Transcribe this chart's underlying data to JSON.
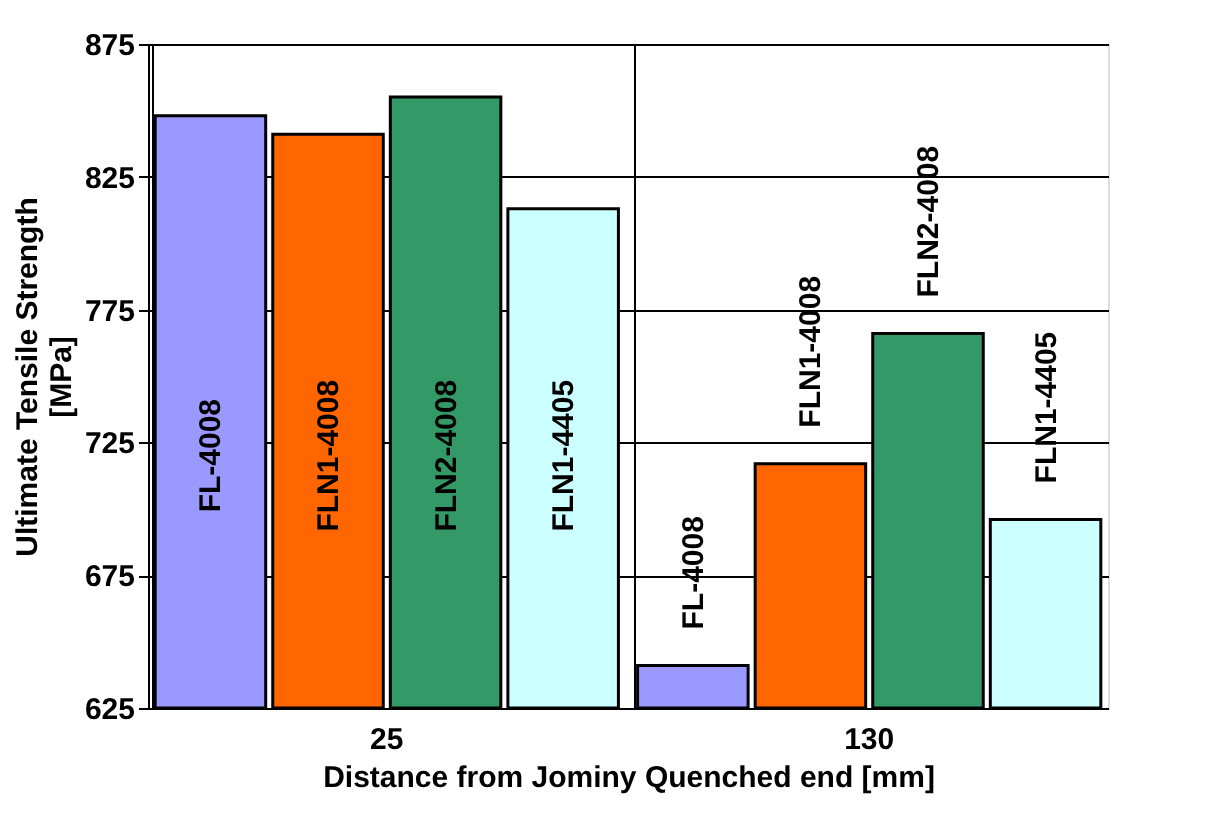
{
  "chart_data": {
    "type": "bar",
    "xlabel": "Distance from Jominy Quenched end [mm]",
    "ylabel": "Ultimate Tensile Strength [MPa]",
    "categories": [
      "25",
      "130"
    ],
    "series": [
      {
        "name": "FL-4008",
        "color": "#9999ff",
        "values": [
          848,
          641
        ]
      },
      {
        "name": "FLN1-4008",
        "color": "#ff6600",
        "values": [
          841,
          717
        ]
      },
      {
        "name": "FLN2-4008",
        "color": "#339966",
        "values": [
          855,
          766
        ]
      },
      {
        "name": "FLN1-4405",
        "color": "#ccffff",
        "values": [
          813,
          696
        ]
      }
    ],
    "ylim": [
      625,
      875
    ],
    "yticks": [
      625,
      675,
      725,
      775,
      825,
      875
    ],
    "grid": true,
    "legend": false
  }
}
